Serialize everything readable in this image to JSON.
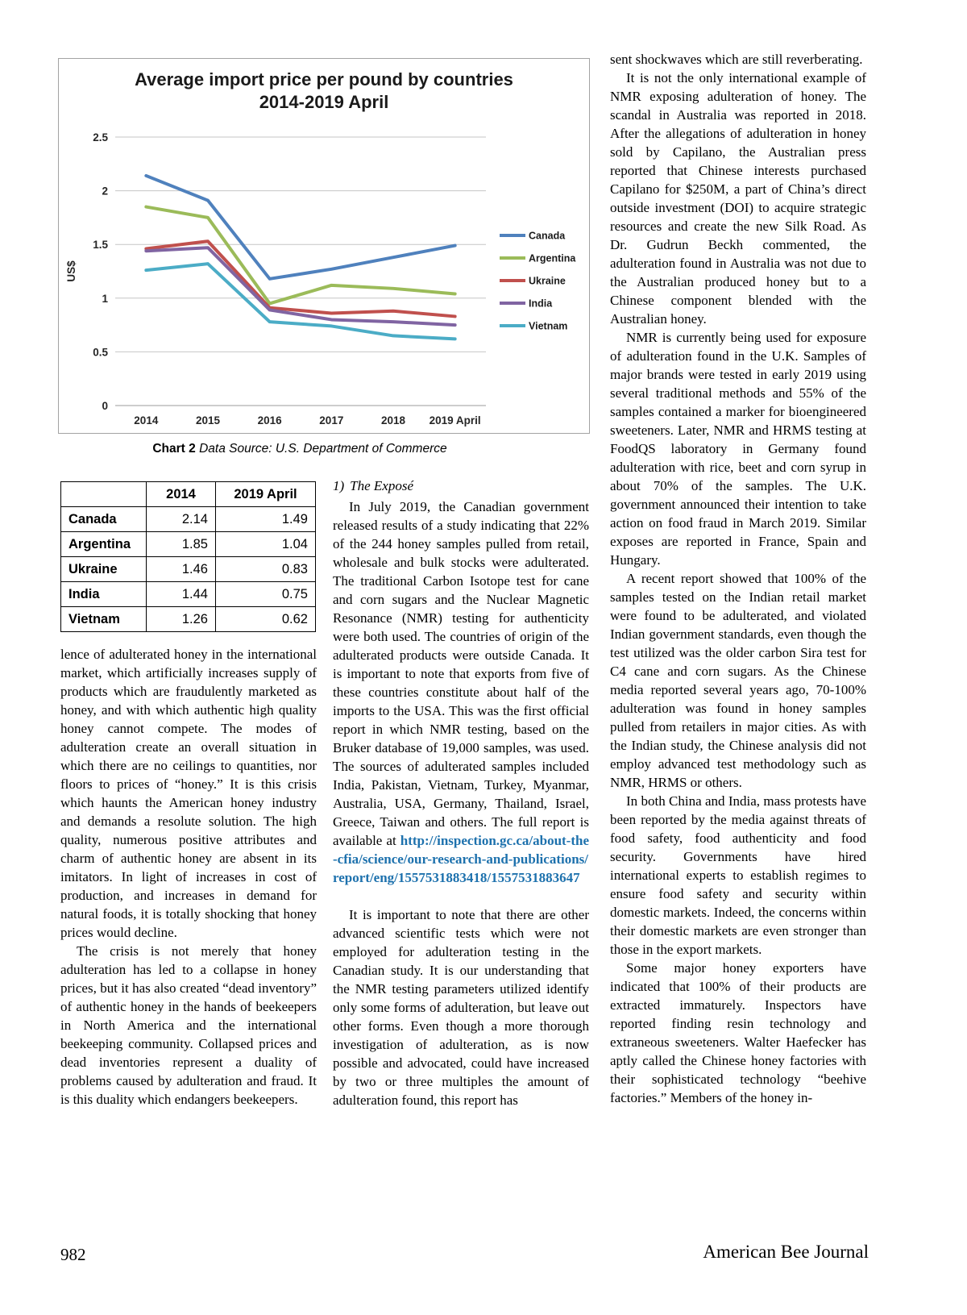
{
  "page": {
    "number": "982",
    "journal": "American Bee Journal"
  },
  "chart": {
    "caption_label": "Chart 2",
    "caption_text": "Data Source: U.S. Department of Commerce"
  },
  "chart_data": {
    "type": "line",
    "title": "Average import price per pound by countries",
    "subtitle": "2014-2019 April",
    "ylabel": "US$",
    "ylim": [
      0,
      2.5
    ],
    "yticks": [
      0,
      0.5,
      1,
      1.5,
      2,
      2.5
    ],
    "categories": [
      "2014",
      "2015",
      "2016",
      "2017",
      "2018",
      "2019 April"
    ],
    "series": [
      {
        "name": "Canada",
        "color": "#4f81bd",
        "values": [
          2.14,
          1.91,
          1.18,
          1.27,
          1.38,
          1.49
        ]
      },
      {
        "name": "Argentina",
        "color": "#9bbb59",
        "values": [
          1.85,
          1.75,
          0.95,
          1.12,
          1.09,
          1.04
        ]
      },
      {
        "name": "Ukraine",
        "color": "#c0504d",
        "values": [
          1.46,
          1.53,
          0.91,
          0.86,
          0.88,
          0.83
        ]
      },
      {
        "name": "India",
        "color": "#8064a2",
        "values": [
          1.44,
          1.47,
          0.89,
          0.8,
          0.78,
          0.75
        ]
      },
      {
        "name": "Vietnam",
        "color": "#4bacc6",
        "values": [
          1.26,
          1.32,
          0.78,
          0.74,
          0.65,
          0.62
        ]
      }
    ],
    "legend_position": "right",
    "grid": true
  },
  "table": {
    "headers": [
      "",
      "2014",
      "2019 April"
    ],
    "rows": [
      {
        "country": "Canada",
        "y2014": "2.14",
        "y2019": "1.49"
      },
      {
        "country": "Argentina",
        "y2014": "1.85",
        "y2019": "1.04"
      },
      {
        "country": "Ukraine",
        "y2014": "1.46",
        "y2019": "0.83"
      },
      {
        "country": "India",
        "y2014": "1.44",
        "y2019": "0.75"
      },
      {
        "country": "Vietnam",
        "y2014": "1.26",
        "y2019": "0.62"
      }
    ]
  },
  "left_column": {
    "paragraphs": [
      "lence of adulterated honey in the international market, which artificially increases supply of products which are fraudulently marketed as honey, and with which authentic high quality honey cannot compete. The modes of adulteration create an overall situation in which there are no ceilings to quantities, nor floors to prices of “honey.” It is this crisis which haunts the American honey industry and demands a resolute solution. The high quality, numerous positive attributes and charm of authentic honey are absent in its imitators. In light of increases in cost of production, and increases in demand for natural foods, it is totally shocking that honey prices would decline.",
      "The crisis is not merely that honey adulteration has led to a collapse in honey prices, but it has also created “dead inventory” of authentic honey in the hands of beekeepers in North America and the international beekeeping community. Collapsed prices and dead inventories represent a duality of problems caused by adulteration and fraud. It is this duality which endangers beekeepers."
    ]
  },
  "middle_column": {
    "heading_number": "1)",
    "heading_title": "The Exposé",
    "para1": "In July 2019, the Canadian government released results of a study indicating that 22% of the 244 honey samples pulled from retail, wholesale and bulk stocks were adulterated. The traditional Carbon Isotope test for cane and corn sugars and the Nuclear Magnetic Resonance (NMR) testing for authenticity were both used. The countries of origin of the adulterated products were outside Canada. It is important to note that exports from five of these countries constitute about half of the imports to the USA. This was the first official report in which NMR testing, based on the Bruker database of 19,000 samples, was used. The sources of adulterated samples included India, Pakistan, Vietnam, Turkey, Myanmar, Australia, USA, Germany, Thailand, Israel, Greece, Taiwan and others. The full report is available at",
    "link_text": "http://inspection.gc.ca/about-the-cfia/science/our-research-and-publications/report/eng/1557531883418/1557531883647",
    "para2": "It is important to note that there are other advanced scientific tests which were not employed for adulteration testing in the Canadian study. It is our understanding that the NMR testing parameters utilized identify only some forms of adulteration, but leave out other forms. Even though a more thorough investigation of adulteration, as is now possible and advocated, could have increased by two or three multiples the amount of adulteration found, this report has"
  },
  "right_column": {
    "paragraphs": [
      "sent shockwaves which are still reverberating.",
      "It is not the only international example of NMR exposing adulteration of honey. The scandal in Australia was reported in 2018. After the allegations of adulteration in honey sold by Capilano, the Australian press reported that Chinese interests purchased Capilano for $250M, a part of China’s direct outside investment (DOI) to acquire strategic resources and create the new Silk Road. As Dr. Gudrun Beckh commented, the adulteration found in Australia was not due to the Australian produced honey but to a Chinese component blended with the Australian honey.",
      "NMR is currently being used for exposure of adulteration found in the U.K. Samples of major brands were tested in early 2019 using several traditional methods and 55% of the samples contained a marker for bioengineered sweeteners. Later, NMR and HRMS testing at FoodQS laboratory in Germany found adulteration with rice, beet and corn syrup in about 70% of the samples. The U.K. government announced their intention to take action on food fraud in March 2019. Similar exposes are reported in France, Spain and Hungary.",
      "A recent report showed that 100% of the samples tested on the Indian retail market were found to be adulterated, and violated Indian government standards, even though the test utilized was the older carbon Sira test for C4 cane and corn sugars. As the Chinese media reported several years ago, 70-100% adulteration was found in honey samples pulled from retailers in major cities. As with the Indian study, the Chinese analysis did not employ advanced test methodology such as NMR, HRMS or others.",
      "In both China and India, mass protests have been reported by the media against threats of food safety, food authenticity and food security. Governments have hired international experts to establish regimes to ensure food safety and security within domestic markets. Indeed, the concerns within their domestic markets are even stronger than those in the export markets.",
      "Some major honey exporters have indicated that 100% of their products are extracted immaturely. Inspectors have reported finding resin technology and extraneous sweeteners. Walter Haefecker has aptly called the Chinese honey factories with their sophisticated technology “beehive factories.” Members of the honey in-"
    ]
  }
}
